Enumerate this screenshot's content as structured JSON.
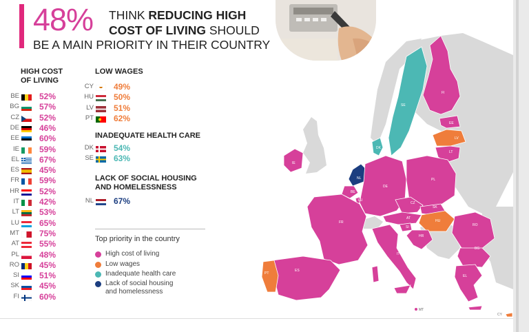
{
  "headline": {
    "percent": "48%",
    "line1_pre": "THINK ",
    "line1_bold": "REDUCING HIGH",
    "line2_bold": "COST OF LIVING",
    "line2_post": " SHOULD",
    "line3": "BE A MAIN PRIORITY IN THEIR COUNTRY"
  },
  "groups": {
    "high_cost": {
      "title_l1": "HIGH COST",
      "title_l2": "OF LIVING",
      "rows": [
        {
          "cc": "BE",
          "pct": "52%",
          "flag": [
            "#000000",
            "#f7d117",
            "#e31d1d"
          ],
          "dir": "v"
        },
        {
          "cc": "BG",
          "pct": "57%",
          "flag": [
            "#ffffff",
            "#00966e",
            "#d62612"
          ],
          "dir": "h"
        },
        {
          "cc": "CZ",
          "pct": "52%",
          "flag": [
            "#ffffff",
            "#d7141a",
            "#11457e"
          ],
          "dir": "cz"
        },
        {
          "cc": "DE",
          "pct": "46%",
          "flag": [
            "#000000",
            "#dd0000",
            "#ffce00"
          ],
          "dir": "h"
        },
        {
          "cc": "EE",
          "pct": "60%",
          "flag": [
            "#0072ce",
            "#000000",
            "#ffffff"
          ],
          "dir": "h"
        },
        {
          "cc": "IE",
          "pct": "59%",
          "flag": [
            "#169b62",
            "#ffffff",
            "#ff883e"
          ],
          "dir": "v"
        },
        {
          "cc": "EL",
          "pct": "67%",
          "flag": [
            "#0d5eaf",
            "#ffffff"
          ],
          "dir": "stripes"
        },
        {
          "cc": "ES",
          "pct": "45%",
          "flag": [
            "#aa151b",
            "#f1bf00",
            "#aa151b"
          ],
          "dir": "es"
        },
        {
          "cc": "FR",
          "pct": "59%",
          "flag": [
            "#0055a4",
            "#ffffff",
            "#ef4135"
          ],
          "dir": "v"
        },
        {
          "cc": "HR",
          "pct": "52%",
          "flag": [
            "#ff0000",
            "#ffffff",
            "#171796"
          ],
          "dir": "h"
        },
        {
          "cc": "IT",
          "pct": "42%",
          "flag": [
            "#009246",
            "#ffffff",
            "#ce2b37"
          ],
          "dir": "v"
        },
        {
          "cc": "LT",
          "pct": "53%",
          "flag": [
            "#fdb913",
            "#006a44",
            "#c1272d"
          ],
          "dir": "h"
        },
        {
          "cc": "LU",
          "pct": "65%",
          "flag": [
            "#ed2939",
            "#ffffff",
            "#00a1de"
          ],
          "dir": "h"
        },
        {
          "cc": "MT",
          "pct": "75%",
          "flag": [
            "#ffffff",
            "#cf142b"
          ],
          "dir": "v2"
        },
        {
          "cc": "AT",
          "pct": "55%",
          "flag": [
            "#ed2939",
            "#ffffff",
            "#ed2939"
          ],
          "dir": "h"
        },
        {
          "cc": "PL",
          "pct": "48%",
          "flag": [
            "#ffffff",
            "#dc143c"
          ],
          "dir": "h2"
        },
        {
          "cc": "RO",
          "pct": "45%",
          "flag": [
            "#002b7f",
            "#fcd116",
            "#ce1126"
          ],
          "dir": "v"
        },
        {
          "cc": "SI",
          "pct": "51%",
          "flag": [
            "#ffffff",
            "#0000ff",
            "#ff0000"
          ],
          "dir": "h"
        },
        {
          "cc": "SK",
          "pct": "45%",
          "flag": [
            "#ffffff",
            "#0b4ea2",
            "#ee1c25"
          ],
          "dir": "h"
        },
        {
          "cc": "FI",
          "pct": "60%",
          "flag": [
            "#ffffff",
            "#003580"
          ],
          "dir": "nordic"
        }
      ]
    },
    "low_wages": {
      "title": "LOW WAGES",
      "rows": [
        {
          "cc": "CY",
          "pct": "49%",
          "flag": [
            "#ffffff",
            "#d57800"
          ],
          "dir": "cy"
        },
        {
          "cc": "HU",
          "pct": "50%",
          "flag": [
            "#ce2939",
            "#ffffff",
            "#477050"
          ],
          "dir": "h"
        },
        {
          "cc": "LV",
          "pct": "51%",
          "flag": [
            "#9e3039",
            "#ffffff",
            "#9e3039"
          ],
          "dir": "lv"
        },
        {
          "cc": "PT",
          "pct": "62%",
          "flag": [
            "#006600",
            "#ff0000"
          ],
          "dir": "pt"
        }
      ]
    },
    "health": {
      "title": "INADEQUATE HEALTH CARE",
      "rows": [
        {
          "cc": "DK",
          "pct": "54%",
          "flag": [
            "#c8102e",
            "#ffffff"
          ],
          "dir": "nordic"
        },
        {
          "cc": "SE",
          "pct": "63%",
          "flag": [
            "#006aa7",
            "#fecc00"
          ],
          "dir": "nordic"
        }
      ]
    },
    "housing": {
      "title_l1": "LACK OF SOCIAL HOUSING",
      "title_l2": "AND HOMELESSNESS",
      "rows": [
        {
          "cc": "NL",
          "pct": "67%",
          "flag": [
            "#ae1c28",
            "#ffffff",
            "#21468b"
          ],
          "dir": "h"
        }
      ]
    }
  },
  "legend": {
    "title": "Top priority in the country",
    "items": [
      {
        "label": "High cost of living",
        "color": "#d6409a"
      },
      {
        "label": "Low wages",
        "color": "#ef7d3b"
      },
      {
        "label": "Inadequate health care",
        "color": "#4cb8b4"
      },
      {
        "label": "Lack of social housing",
        "label2": "and homelessness",
        "color": "#1c3e80"
      }
    ]
  },
  "colors": {
    "high_cost": "#d6409a",
    "low_wages": "#ef7d3b",
    "health": "#4cb8b4",
    "housing": "#1c3e80",
    "non_eu": "#d9d9d9"
  },
  "map": {
    "country_labels": [
      "FI",
      "SE",
      "EE",
      "LV",
      "LT",
      "DK",
      "IE",
      "NL",
      "BE",
      "LU",
      "DE",
      "PL",
      "CZ",
      "SK",
      "AT",
      "HU",
      "SI",
      "HR",
      "RO",
      "BG",
      "FR",
      "IT",
      "ES",
      "PT",
      "EL",
      "MT",
      "CY"
    ]
  }
}
